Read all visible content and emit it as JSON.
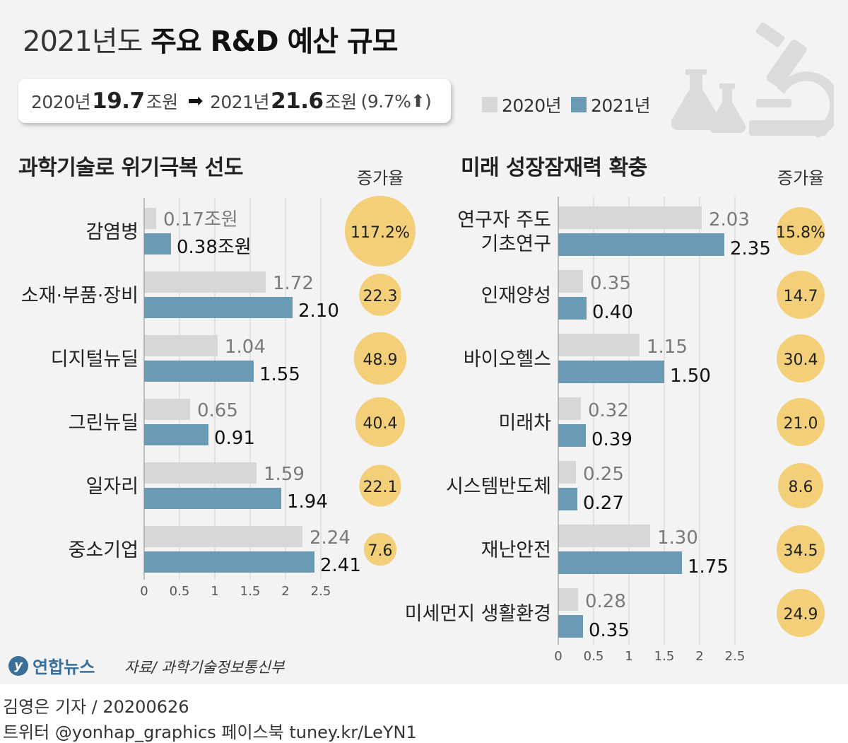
{
  "header": {
    "title_prefix": "2021년도",
    "title_main": "주요 R&D 예산 규모"
  },
  "summary": {
    "year_2020": "2020년",
    "value_2020": "19.7",
    "unit_2020": "조원",
    "year_2021": "2021년",
    "value_2021": "21.6",
    "unit_2021": "조원",
    "change": "(9.7%",
    "change_end": ")"
  },
  "legend": {
    "items": [
      {
        "label": "2020년",
        "color": "#d7d7d7"
      },
      {
        "label": "2021년",
        "color": "#6b9ab4"
      }
    ]
  },
  "colors": {
    "bar_2020": "#d7d7d7",
    "bar_2021": "#6b9ab4",
    "bubble": "#f3cf79",
    "label_2020": "#7a7a7a",
    "label_2021": "#111111"
  },
  "chart_data": [
    {
      "type": "bar",
      "orientation": "horizontal",
      "title": "과학기술로 위기극복 선도",
      "rate_header": "증가율",
      "categories": [
        "감염병",
        "소재·부품·장비",
        "디지털뉴딜",
        "그린뉴딜",
        "일자리",
        "중소기업"
      ],
      "series": [
        {
          "name": "2020년",
          "values": [
            0.17,
            1.72,
            1.04,
            0.65,
            1.59,
            2.24
          ],
          "labels": [
            "0.17조원",
            "1.72",
            "1.04",
            "0.65",
            "1.59",
            "2.24"
          ]
        },
        {
          "name": "2021년",
          "values": [
            0.38,
            2.1,
            1.55,
            0.91,
            1.94,
            2.41
          ],
          "labels": [
            "0.38조원",
            "2.10",
            "1.55",
            "0.91",
            "1.94",
            "2.41"
          ]
        }
      ],
      "growth_rates": [
        117.2,
        22.3,
        48.9,
        40.4,
        22.1,
        7.6
      ],
      "growth_labels": [
        "117.2%",
        "22.3",
        "48.9",
        "40.4",
        "22.1",
        "7.6"
      ],
      "xlim": [
        0,
        2.5
      ],
      "xticks": [
        "0",
        "0.5",
        "1",
        "1.5",
        "2",
        "2.5"
      ],
      "grid": true
    },
    {
      "type": "bar",
      "orientation": "horizontal",
      "title": "미래 성장잠재력 확충",
      "rate_header": "증가율",
      "categories": [
        "연구자 주도\n기초연구",
        "인재양성",
        "바이오헬스",
        "미래차",
        "시스템반도체",
        "재난안전",
        "미세먼지 생활환경"
      ],
      "series": [
        {
          "name": "2020년",
          "values": [
            2.03,
            0.35,
            1.15,
            0.32,
            0.25,
            1.3,
            0.28
          ],
          "labels": [
            "2.03",
            "0.35",
            "1.15",
            "0.32",
            "0.25",
            "1.30",
            "0.28"
          ]
        },
        {
          "name": "2021년",
          "values": [
            2.35,
            0.4,
            1.5,
            0.39,
            0.27,
            1.75,
            0.35
          ],
          "labels": [
            "2.35",
            "0.40",
            "1.50",
            "0.39",
            "0.27",
            "1.75",
            "0.35"
          ]
        }
      ],
      "growth_rates": [
        15.8,
        14.7,
        30.4,
        21.0,
        8.6,
        34.5,
        24.9
      ],
      "growth_labels": [
        "15.8%",
        "14.7",
        "30.4",
        "21.0",
        "8.6",
        "34.5",
        "24.9"
      ],
      "xlim": [
        0,
        2.5
      ],
      "xticks": [
        "0",
        "0.5",
        "1",
        "1.5",
        "2",
        "2.5"
      ],
      "grid": true
    }
  ],
  "source": {
    "logo": "연합뉴스",
    "credit": "자료/ 과학기술정보통신부"
  },
  "footer": {
    "reporter": "김영은 기자 / 20200626",
    "social": "트위터 @yonhap_graphics  페이스북 tuney.kr/LeYN1"
  }
}
